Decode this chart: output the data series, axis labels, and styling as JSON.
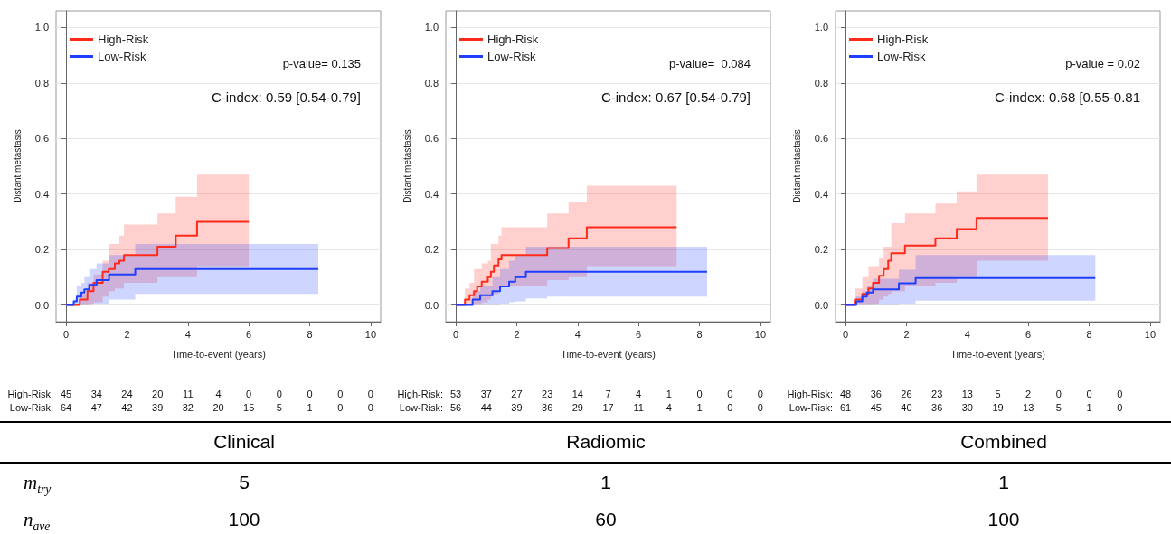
{
  "chart_data": [
    {
      "type": "step",
      "xlabel": "Time-to-event (years)",
      "ylabel": "Distant metastasis",
      "xlim": [
        -0.33,
        10.33
      ],
      "xticks": [
        0,
        2,
        4,
        6,
        8,
        10
      ],
      "ylim": [
        -0.06,
        1.06
      ],
      "yticks": [
        {
          "value": 0,
          "label": "0.0"
        },
        {
          "value": 0.2,
          "label": "0.2"
        },
        {
          "value": 0.4,
          "label": "0.4"
        },
        {
          "value": 0.6,
          "label": "0.6"
        },
        {
          "value": 0.8,
          "label": "0.8"
        },
        {
          "value": 1,
          "label": "1.0"
        }
      ],
      "grid": "y",
      "legend": "top left",
      "annotations": [
        "p-value= 0.135",
        "C-index: 0.59 [0.54-0.79]",
        "High-Risk: 45 34 24 20 11 4 0 0 0 0 0",
        "Low-Risk: 64 47 42 39 32 20 15 5 1 0 0"
      ],
      "series": [
        {
          "name": "High-Risk",
          "color": "#ff2a1a",
          "x": [
            0,
            0.45,
            0.7,
            0.9,
            1.2,
            1.4,
            1.6,
            1.75,
            1.9,
            3.0,
            3.6,
            4.3,
            6.0
          ],
          "values": [
            0,
            0.02,
            0.05,
            0.08,
            0.12,
            0.13,
            0.15,
            0.16,
            0.18,
            0.21,
            0.25,
            0.3,
            0.3
          ],
          "upper": [
            0,
            0.04,
            0.08,
            0.11,
            0.16,
            0.22,
            0.22,
            0.25,
            0.29,
            0.33,
            0.39,
            0.47,
            0.47
          ],
          "lower": [
            0,
            0,
            0,
            0.01,
            0.03,
            0.05,
            0.06,
            0.06,
            0.08,
            0.1,
            0.1,
            0.14,
            0.14
          ]
        },
        {
          "name": "Low-Risk",
          "color": "#1f3fff",
          "x": [
            0,
            0.25,
            0.35,
            0.5,
            0.6,
            0.76,
            1.0,
            1.41,
            2.27,
            8.28
          ],
          "values": [
            0,
            0.013,
            0.03,
            0.045,
            0.056,
            0.073,
            0.09,
            0.11,
            0.13,
            0.13
          ],
          "upper": [
            0,
            0.02,
            0.07,
            0.08,
            0.1,
            0.13,
            0.15,
            0.18,
            0.22,
            0.22
          ],
          "lower": [
            0,
            0,
            0,
            0,
            0,
            0.002,
            0.005,
            0.02,
            0.04,
            0.04
          ]
        }
      ]
    },
    {
      "type": "step",
      "xlabel": "Time-to-event (years)",
      "ylabel": "Distant metastasis",
      "xlim": [
        -0.33,
        10.33
      ],
      "xticks": [
        0,
        2,
        4,
        6,
        8,
        10
      ],
      "ylim": [
        -0.06,
        1.06
      ],
      "yticks": [
        {
          "value": 0,
          "label": "0.0"
        },
        {
          "value": 0.2,
          "label": "0.2"
        },
        {
          "value": 0.4,
          "label": "0.4"
        },
        {
          "value": 0.6,
          "label": "0.6"
        },
        {
          "value": 0.8,
          "label": "0.8"
        },
        {
          "value": 1,
          "label": "1.0"
        }
      ],
      "grid": "y",
      "legend": "top left",
      "annotations": [
        "p-value=  0.084",
        "C-index: 0.67 [0.54-0.79]",
        "High-Risk: 53 37 27 23 14 7 4 1 0 0 0",
        "Low-Risk: 56 44 39 36 29 17 11 4 1 0 0"
      ],
      "series": [
        {
          "name": "High-Risk",
          "color": "#ff2a1a",
          "x": [
            0,
            0.3,
            0.45,
            0.6,
            0.7,
            0.85,
            1.05,
            1.15,
            1.25,
            1.4,
            1.5,
            3.0,
            3.7,
            4.3,
            7.25
          ],
          "values": [
            0,
            0.02,
            0.035,
            0.05,
            0.067,
            0.084,
            0.1,
            0.12,
            0.143,
            0.165,
            0.18,
            0.205,
            0.24,
            0.28,
            0.28
          ],
          "upper": [
            0,
            0.06,
            0.08,
            0.13,
            0.13,
            0.15,
            0.16,
            0.22,
            0.22,
            0.25,
            0.28,
            0.33,
            0.37,
            0.43,
            0.43
          ],
          "lower": [
            0,
            0,
            0,
            0,
            0,
            0.01,
            0.02,
            0.03,
            0.04,
            0.06,
            0.07,
            0.09,
            0.1,
            0.14,
            0.14
          ]
        },
        {
          "name": "Low-Risk",
          "color": "#1f3fff",
          "x": [
            0,
            0.55,
            0.8,
            1.2,
            1.45,
            1.75,
            1.95,
            2.3,
            3.0,
            8.25
          ],
          "values": [
            0,
            0.02,
            0.035,
            0.05,
            0.067,
            0.084,
            0.1,
            0.12,
            0.12,
            0.12
          ],
          "upper": [
            0,
            0.05,
            0.07,
            0.1,
            0.13,
            0.16,
            0.18,
            0.21,
            0.21,
            0.21
          ],
          "lower": [
            0,
            0,
            0,
            0,
            0.002,
            0.01,
            0.013,
            0.024,
            0.03,
            0.03
          ]
        }
      ]
    },
    {
      "type": "step",
      "xlabel": "Time-to-event (years)",
      "ylabel": "Distant metastasis",
      "xlim": [
        -0.33,
        10.33
      ],
      "xticks": [
        0,
        2,
        4,
        6,
        8,
        10
      ],
      "ylim": [
        -0.06,
        1.06
      ],
      "yticks": [
        {
          "value": 0,
          "label": "0.0"
        },
        {
          "value": 0.2,
          "label": "0.2"
        },
        {
          "value": 0.4,
          "label": "0.4"
        },
        {
          "value": 0.6,
          "label": "0.6"
        },
        {
          "value": 0.8,
          "label": "0.8"
        },
        {
          "value": 1,
          "label": "1.0"
        }
      ],
      "grid": "y",
      "legend": "top left",
      "annotations": [
        "p-value = 0.02",
        "C-index: 0.68 [0.55-0.81",
        "High-Risk: 48 36 26 23 13 5 2 0 0 0",
        "Low-Risk: 61 45 40 36 30 19 13 5 1 0"
      ],
      "series": [
        {
          "name": "High-Risk",
          "color": "#ff2a1a",
          "x": [
            0,
            0.3,
            0.55,
            0.75,
            0.9,
            1.1,
            1.25,
            1.4,
            1.5,
            1.95,
            2.95,
            3.65,
            4.3,
            6.65
          ],
          "values": [
            0,
            0.02,
            0.04,
            0.06,
            0.08,
            0.105,
            0.13,
            0.16,
            0.187,
            0.214,
            0.24,
            0.274,
            0.314,
            0.314
          ],
          "upper": [
            0,
            0.06,
            0.1,
            0.14,
            0.14,
            0.17,
            0.21,
            0.21,
            0.295,
            0.33,
            0.366,
            0.41,
            0.47,
            0.47
          ],
          "lower": [
            0,
            0,
            0,
            0,
            0.005,
            0.02,
            0.03,
            0.04,
            0.05,
            0.07,
            0.08,
            0.1,
            0.16,
            0.16
          ]
        },
        {
          "name": "Low-Risk",
          "color": "#1f3fff",
          "x": [
            0,
            0.35,
            0.55,
            0.7,
            0.9,
            1.75,
            2.3,
            8.2
          ],
          "values": [
            0,
            0.013,
            0.03,
            0.045,
            0.056,
            0.078,
            0.097,
            0.097
          ],
          "upper": [
            0,
            0.03,
            0.05,
            0.07,
            0.095,
            0.127,
            0.18,
            0.18
          ],
          "lower": [
            0,
            0,
            0,
            0,
            0,
            0.002,
            0.016,
            0.016
          ]
        }
      ]
    },
    {
      "type": "other",
      "annotations": [
        "Clinical",
        "Radiomic",
        "Combined",
        "m$_{try}$",
        "5",
        "1",
        "1",
        "n$_{ave}$",
        "100",
        "60",
        "100"
      ]
    }
  ]
}
